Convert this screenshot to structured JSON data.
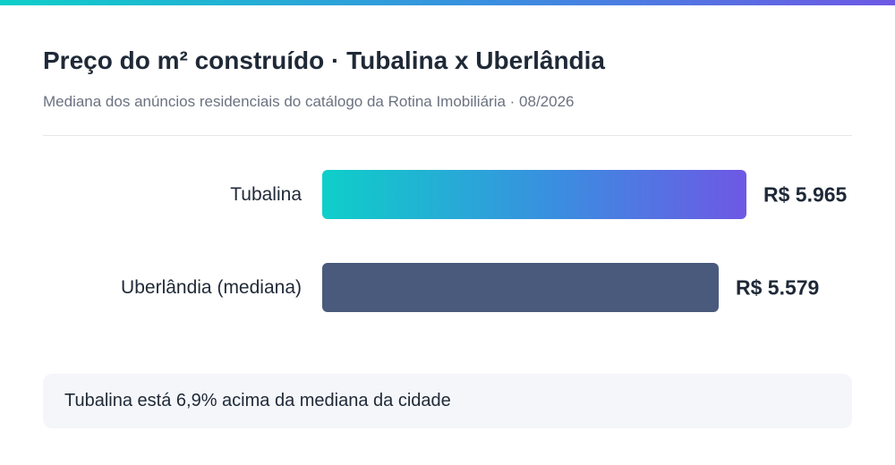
{
  "header": {
    "title": "Preço do m² construído · Tubalina x Uberlândia",
    "subtitle": "Mediana dos anúncios residenciais do catálogo da Rotina Imobiliária · 08/2026"
  },
  "colors": {
    "accent_start": "#0ecfc9",
    "accent_end": "#6e58e4",
    "bar_city": "#4a5a7c",
    "text": "#1f2937",
    "muted": "#6b7280"
  },
  "chart_data": {
    "type": "bar",
    "orientation": "horizontal",
    "categories": [
      "Tubalina",
      "Uberlândia (mediana)"
    ],
    "values": [
      5965,
      5579
    ],
    "value_labels": [
      "R$ 5.965",
      "R$ 5.579"
    ],
    "xlim": [
      0,
      5965
    ],
    "grid": false,
    "legend": "none"
  },
  "note": {
    "text": "Tubalina está 6,9% acima da mediana da cidade"
  }
}
